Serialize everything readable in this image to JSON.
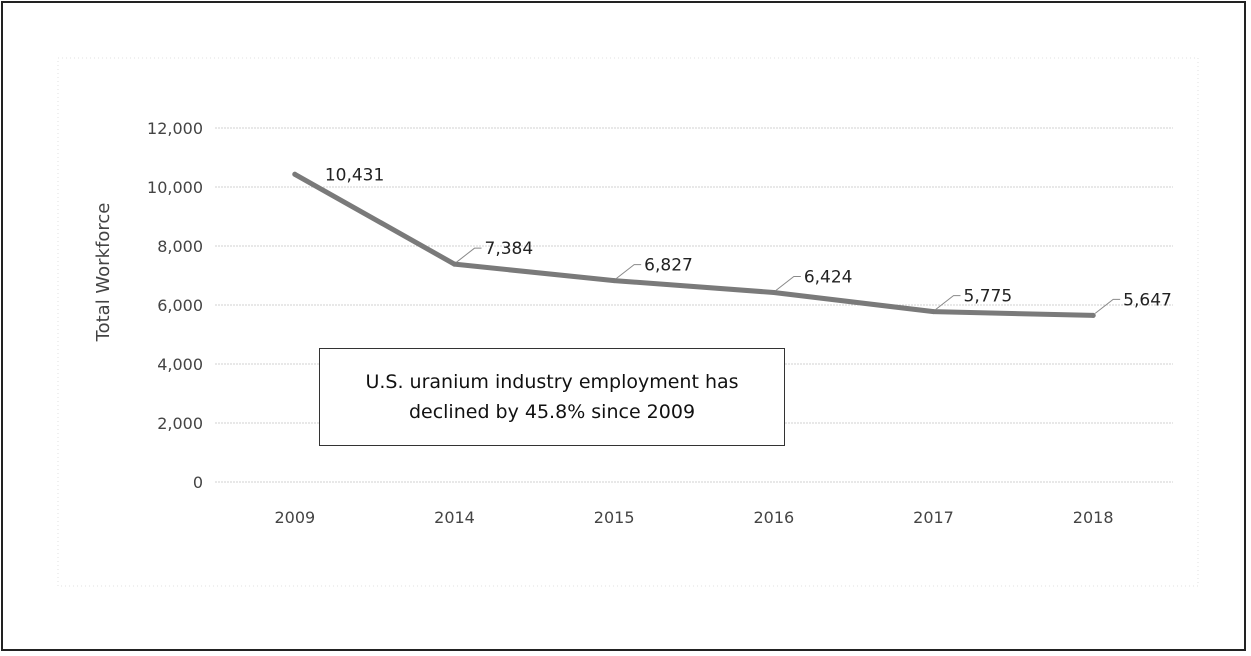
{
  "chart_data": {
    "type": "line",
    "title": "",
    "xlabel": "",
    "ylabel": "Total Workforce",
    "ylim": [
      0,
      12000
    ],
    "yticks": [
      0,
      2000,
      4000,
      6000,
      8000,
      10000,
      12000
    ],
    "ytick_labels": [
      "0",
      "2,000",
      "4,000",
      "6,000",
      "8,000",
      "10,000",
      "12,000"
    ],
    "categories": [
      "2009",
      "2014",
      "2015",
      "2016",
      "2017",
      "2018"
    ],
    "series": [
      {
        "values": [
          10431,
          7384,
          6827,
          6424,
          5775,
          5647
        ],
        "labels": [
          "10,431",
          "7,384",
          "6,827",
          "6,424",
          "5,775",
          "5,647"
        ],
        "color": "#7a7a7a"
      }
    ],
    "grid": true,
    "legend": "none"
  },
  "annotation": {
    "text": "U.S. uranium industry employment has\ndeclined by 45.8% since 2009"
  }
}
